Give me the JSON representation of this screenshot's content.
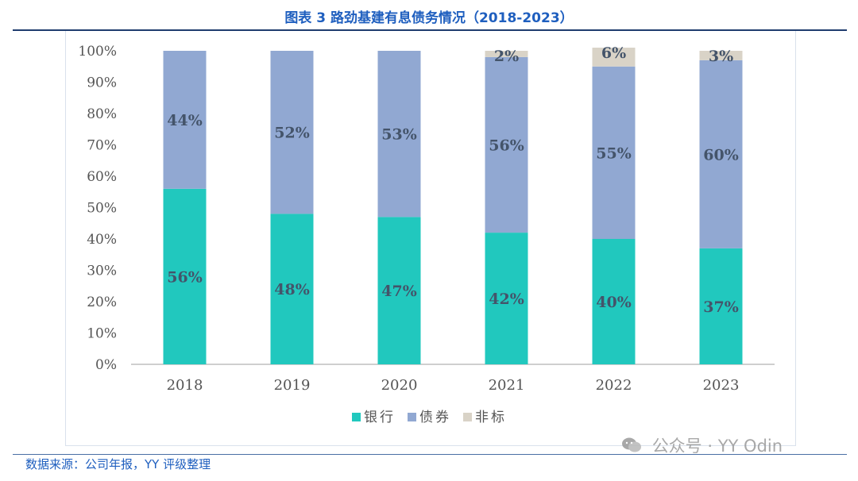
{
  "title": "图表 3 路劲基建有息债务情况（2018-2023）",
  "source": "数据来源：公司年报，YY 评级整理",
  "watermark": "公众号 · YY Odin",
  "chart_data": {
    "type": "bar",
    "stacked": true,
    "percent": true,
    "categories": [
      "2018",
      "2019",
      "2020",
      "2021",
      "2022",
      "2023"
    ],
    "series": [
      {
        "name": "银行",
        "color": "#21c8be",
        "values": [
          56,
          48,
          47,
          42,
          40,
          37
        ],
        "labels": [
          "56%",
          "48%",
          "47%",
          "42%",
          "40%",
          "37%"
        ]
      },
      {
        "name": "债券",
        "color": "#91a8d2",
        "values": [
          44,
          52,
          53,
          56,
          55,
          60
        ],
        "labels": [
          "44%",
          "52%",
          "53%",
          "56%",
          "55%",
          "60%"
        ]
      },
      {
        "name": "非标",
        "color": "#d9d3c7",
        "values": [
          0,
          0,
          0,
          2,
          6,
          3
        ],
        "labels": [
          "",
          "",
          "",
          "2%",
          "6%",
          "3%"
        ]
      }
    ],
    "ylim": [
      0,
      100
    ],
    "yticks": [
      "0%",
      "10%",
      "20%",
      "30%",
      "40%",
      "50%",
      "60%",
      "70%",
      "80%",
      "90%",
      "100%"
    ],
    "legend_position": "bottom"
  }
}
